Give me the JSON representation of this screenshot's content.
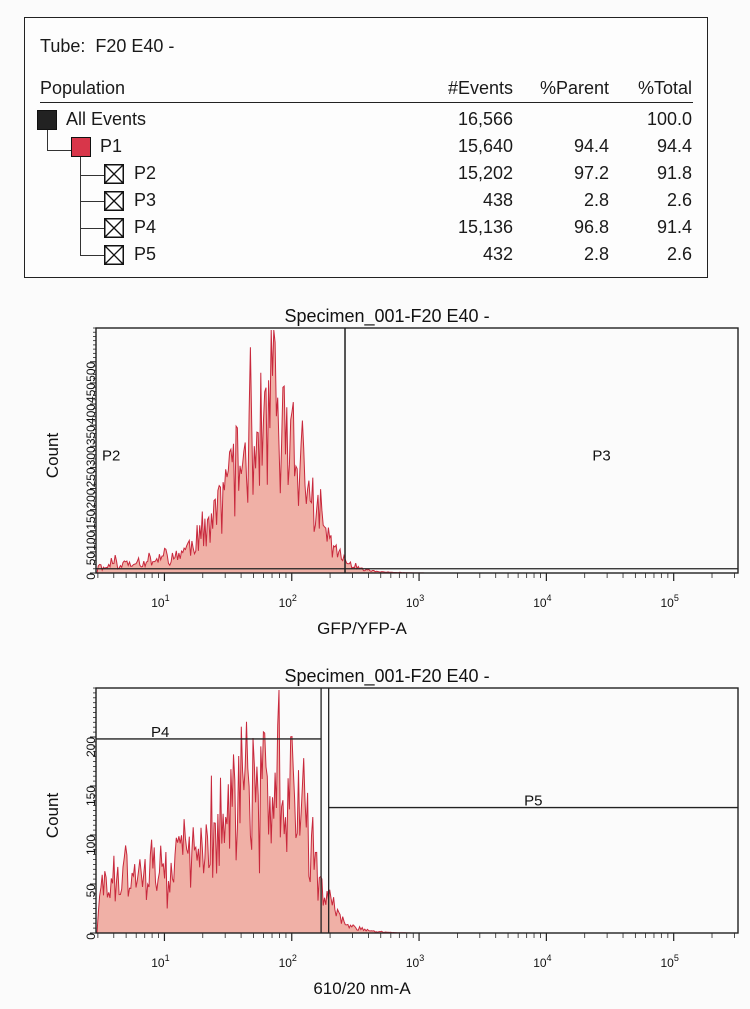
{
  "stats_table": {
    "tube_label": "Tube:",
    "tube_value": "F20 E40 -",
    "headers": {
      "population": "Population",
      "events": "#Events",
      "parent": "%Parent",
      "total": "%Total"
    },
    "rows": [
      {
        "name": "All Events",
        "events": "16,566",
        "parent": "",
        "total": "100.0",
        "icon": "black-square-icon"
      },
      {
        "name": "P1",
        "events": "15,640",
        "parent": "94.4",
        "total": "94.4",
        "icon": "red-square-icon"
      },
      {
        "name": "P2",
        "events": "15,202",
        "parent": "97.2",
        "total": "91.8",
        "icon": "crossed-box-icon"
      },
      {
        "name": "P3",
        "events": "438",
        "parent": "2.8",
        "total": "2.6",
        "icon": "crossed-box-icon"
      },
      {
        "name": "P4",
        "events": "15,136",
        "parent": "96.8",
        "total": "91.4",
        "icon": "crossed-box-icon"
      },
      {
        "name": "P5",
        "events": "432",
        "parent": "2.8",
        "total": "2.6",
        "icon": "crossed-box-icon"
      }
    ]
  },
  "colors": {
    "hist_line": "#c8283c",
    "hist_fill": "#f0b0a6",
    "gate": "#222222",
    "frame": "#222222"
  },
  "chart_data": [
    {
      "type": "histogram",
      "title": "Specimen_001-F20 E40 -",
      "xlabel": "GFP/YFP-A",
      "ylabel": "Count",
      "x_scale": "log",
      "xlim": [
        2.9,
        320000
      ],
      "ylim": [
        0,
        580
      ],
      "y_ticks": [
        0,
        50,
        100,
        150,
        200,
        250,
        300,
        350,
        400,
        450,
        500
      ],
      "x_tick_labels": [
        {
          "base": "10",
          "exp": "1"
        },
        {
          "base": "10",
          "exp": "2"
        },
        {
          "base": "10",
          "exp": "3"
        },
        {
          "base": "10",
          "exp": "4"
        },
        {
          "base": "10",
          "exp": "5"
        }
      ],
      "x_ticks": [
        10,
        100,
        1000,
        10000,
        100000
      ],
      "gates": [
        {
          "name": "P2",
          "x_min": 2.9,
          "x_max": 262,
          "y_level": 10,
          "label_pos": "left"
        },
        {
          "name": "P3",
          "x_min": 262,
          "x_max": 320000,
          "y_level": 10,
          "label_pos": "right"
        }
      ],
      "profile": [
        [
          3.0,
          0.05
        ],
        [
          3.2,
          0.02
        ],
        [
          3.6,
          0.03
        ],
        [
          4,
          0.08
        ],
        [
          4.4,
          0.02
        ],
        [
          5,
          0.06
        ],
        [
          5.5,
          0.03
        ],
        [
          6,
          0.08
        ],
        [
          6.6,
          0.04
        ],
        [
          7.5,
          0.07
        ],
        [
          8.5,
          0.06
        ],
        [
          10,
          0.09
        ],
        [
          11,
          0.06
        ],
        [
          13,
          0.1
        ],
        [
          15,
          0.12
        ],
        [
          17,
          0.15
        ],
        [
          19,
          0.18
        ],
        [
          21,
          0.2
        ],
        [
          24,
          0.3
        ],
        [
          28,
          0.38
        ],
        [
          33,
          0.45
        ],
        [
          38,
          0.52
        ],
        [
          45,
          0.6
        ],
        [
          52,
          0.66
        ],
        [
          60,
          0.7
        ],
        [
          68,
          0.74
        ],
        [
          75,
          0.8
        ],
        [
          85,
          0.7
        ],
        [
          95,
          0.64
        ],
        [
          105,
          0.58
        ],
        [
          120,
          0.48
        ],
        [
          140,
          0.38
        ],
        [
          160,
          0.29
        ],
        [
          185,
          0.2
        ],
        [
          215,
          0.12
        ],
        [
          250,
          0.07
        ],
        [
          300,
          0.04
        ],
        [
          360,
          0.02
        ],
        [
          450,
          0.008
        ],
        [
          600,
          0.003
        ],
        [
          800,
          0.001
        ],
        [
          1200,
          0.0
        ]
      ],
      "peak_count": 480,
      "seed": 11
    },
    {
      "type": "histogram",
      "title": "Specimen_001-F20 E40 -",
      "xlabel": "610/20 nm-A",
      "ylabel": "Count",
      "x_scale": "log",
      "xlim": [
        2.9,
        320000
      ],
      "ylim": [
        0,
        250
      ],
      "y_ticks": [
        0,
        50,
        100,
        150,
        200
      ],
      "x_tick_labels": [
        {
          "base": "10",
          "exp": "1"
        },
        {
          "base": "10",
          "exp": "2"
        },
        {
          "base": "10",
          "exp": "3"
        },
        {
          "base": "10",
          "exp": "4"
        },
        {
          "base": "10",
          "exp": "5"
        }
      ],
      "x_ticks": [
        10,
        100,
        1000,
        10000,
        100000
      ],
      "gates": [
        {
          "name": "P4",
          "x_min": 2.9,
          "x_max": 170,
          "y_level": 198,
          "label_pos": "left"
        },
        {
          "name": "P5",
          "x_min": 195,
          "x_max": 320000,
          "y_level": 128,
          "label_pos": "right"
        }
      ],
      "profile": [
        [
          3.0,
          0.12
        ],
        [
          3.3,
          0.25
        ],
        [
          3.7,
          0.15
        ],
        [
          4,
          0.3
        ],
        [
          4.5,
          0.2
        ],
        [
          5,
          0.33
        ],
        [
          5.6,
          0.22
        ],
        [
          6.3,
          0.3
        ],
        [
          7,
          0.26
        ],
        [
          8,
          0.34
        ],
        [
          9,
          0.3
        ],
        [
          10,
          0.36
        ],
        [
          11.5,
          0.3
        ],
        [
          13,
          0.38
        ],
        [
          15,
          0.34
        ],
        [
          17,
          0.4
        ],
        [
          19,
          0.38
        ],
        [
          21,
          0.44
        ],
        [
          24,
          0.5
        ],
        [
          28,
          0.56
        ],
        [
          33,
          0.6
        ],
        [
          38,
          0.64
        ],
        [
          45,
          0.68
        ],
        [
          52,
          0.7
        ],
        [
          60,
          0.74
        ],
        [
          68,
          0.78
        ],
        [
          75,
          0.82
        ],
        [
          85,
          0.8
        ],
        [
          95,
          0.72
        ],
        [
          110,
          0.66
        ],
        [
          125,
          0.56
        ],
        [
          145,
          0.42
        ],
        [
          165,
          0.3
        ],
        [
          185,
          0.2
        ],
        [
          210,
          0.12
        ],
        [
          240,
          0.07
        ],
        [
          280,
          0.04
        ],
        [
          330,
          0.025
        ],
        [
          400,
          0.012
        ],
        [
          500,
          0.005
        ],
        [
          650,
          0.002
        ],
        [
          900,
          0.0
        ]
      ],
      "peak_count": 200,
      "seed": 29
    }
  ]
}
